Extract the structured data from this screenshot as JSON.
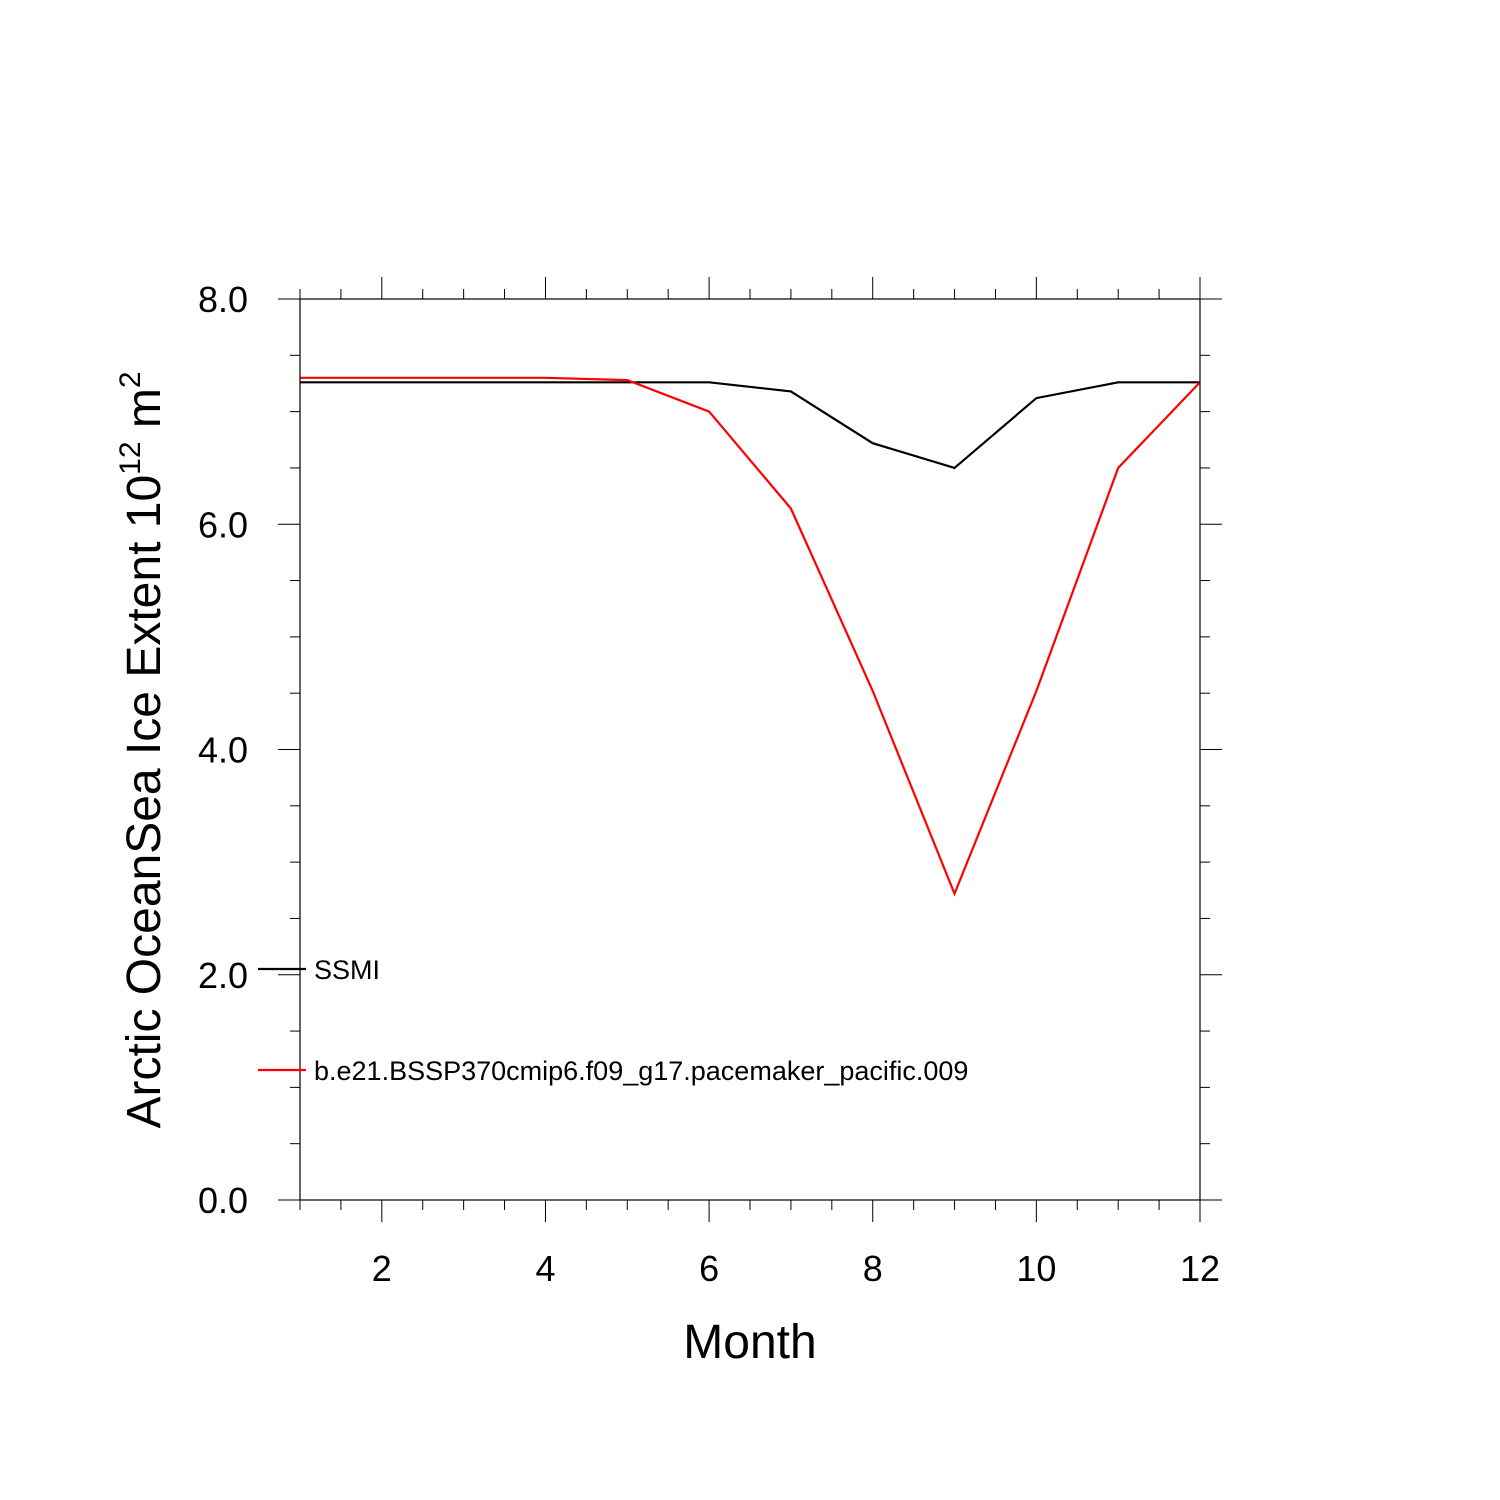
{
  "chart_data": {
    "type": "line",
    "xlabel": "Month",
    "ylabel": {
      "main": "Arctic OceanSea Ice Extent 10",
      "exp1": "12",
      "unit": " m",
      "exp2": "2"
    },
    "xlim": [
      1,
      12
    ],
    "ylim": [
      0,
      8
    ],
    "x_ticks": [
      2,
      4,
      6,
      8,
      10,
      12
    ],
    "x_tick_labels": [
      "2",
      "4",
      "6",
      "8",
      "10",
      "12"
    ],
    "y_ticks": [
      0,
      2,
      4,
      6,
      8
    ],
    "y_tick_labels": [
      "0.0",
      "2.0",
      "4.0",
      "6.0",
      "8.0"
    ],
    "grid": false,
    "legend_position": "inside-left",
    "series": [
      {
        "name": "SSMI",
        "color": "#000000",
        "x": [
          1,
          2,
          3,
          4,
          5,
          6,
          7,
          8,
          9,
          10,
          11,
          12
        ],
        "y": [
          7.26,
          7.26,
          7.26,
          7.26,
          7.26,
          7.26,
          7.18,
          6.72,
          6.5,
          7.12,
          7.26,
          7.26
        ]
      },
      {
        "name": "b.e21.BSSP370cmip6.f09_g17.pacemaker_pacific.009",
        "color": "#ff0000",
        "x": [
          1,
          2,
          3,
          4,
          5,
          6,
          7,
          8,
          9,
          10,
          11,
          12
        ],
        "y": [
          7.3,
          7.3,
          7.3,
          7.3,
          7.28,
          7.0,
          6.14,
          4.52,
          2.72,
          4.52,
          6.5,
          7.26
        ]
      }
    ]
  }
}
